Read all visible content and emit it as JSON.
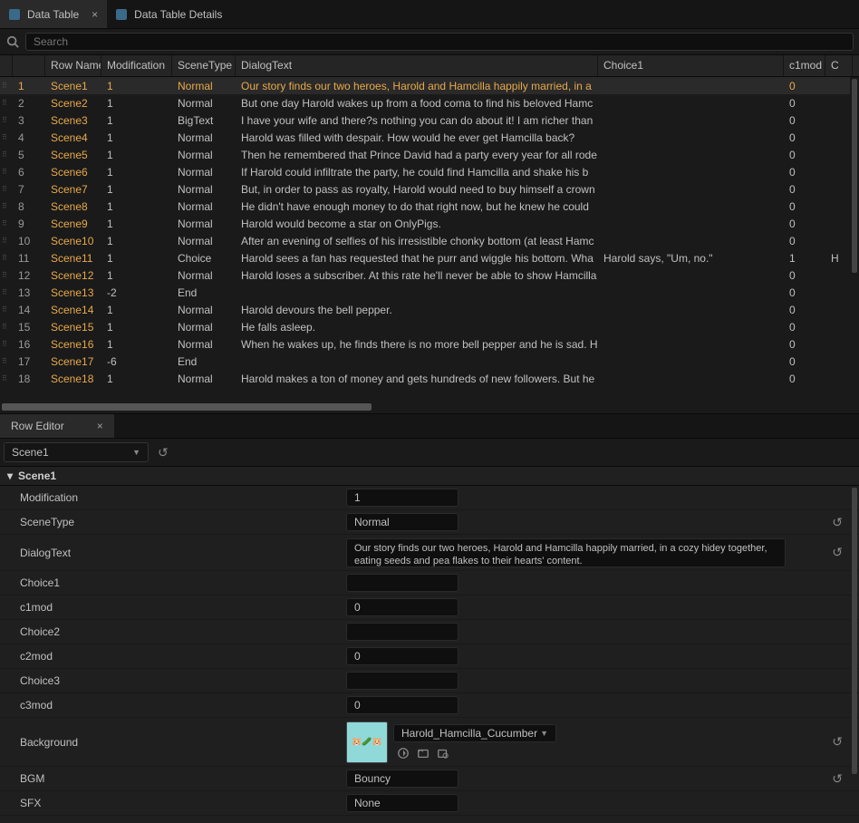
{
  "tabs": {
    "dataTable": "Data Table",
    "dataTableDetails": "Data Table Details"
  },
  "search": {
    "placeholder": "Search"
  },
  "columns": {
    "index": "",
    "rowName": "Row Name",
    "modification": "Modification",
    "sceneType": "SceneType",
    "dialogText": "DialogText",
    "choice1": "Choice1",
    "c1mod": "c1mod",
    "c": "C"
  },
  "rows": [
    {
      "idx": "1",
      "name": "Scene1",
      "mod": "1",
      "type": "Normal",
      "dialog": "Our story finds our two heroes, Harold and Hamcilla happily married, in a",
      "choice1": "",
      "c1mod": "0",
      "c": ""
    },
    {
      "idx": "2",
      "name": "Scene2",
      "mod": "1",
      "type": "Normal",
      "dialog": "But one day Harold wakes up from a food coma to find his beloved Hamc",
      "choice1": "",
      "c1mod": "0",
      "c": ""
    },
    {
      "idx": "3",
      "name": "Scene3",
      "mod": "1",
      "type": "BigText",
      "dialog": "I have your wife and there?s nothing you can do about it! I am richer than",
      "choice1": "",
      "c1mod": "0",
      "c": ""
    },
    {
      "idx": "4",
      "name": "Scene4",
      "mod": "1",
      "type": "Normal",
      "dialog": "Harold was filled with despair. How would he ever get Hamcilla back?",
      "choice1": "",
      "c1mod": "0",
      "c": ""
    },
    {
      "idx": "5",
      "name": "Scene5",
      "mod": "1",
      "type": "Normal",
      "dialog": "Then he remembered that Prince David had a party every year for all rode",
      "choice1": "",
      "c1mod": "0",
      "c": ""
    },
    {
      "idx": "6",
      "name": "Scene6",
      "mod": "1",
      "type": "Normal",
      "dialog": "If Harold could infiltrate the party, he could find Hamcilla and shake his b",
      "choice1": "",
      "c1mod": "0",
      "c": ""
    },
    {
      "idx": "7",
      "name": "Scene7",
      "mod": "1",
      "type": "Normal",
      "dialog": "But, in order to pass as royalty, Harold would need to buy himself a crown",
      "choice1": "",
      "c1mod": "0",
      "c": ""
    },
    {
      "idx": "8",
      "name": "Scene8",
      "mod": "1",
      "type": "Normal",
      "dialog": "He didn't have enough money to do that right now, but he knew he could",
      "choice1": "",
      "c1mod": "0",
      "c": ""
    },
    {
      "idx": "9",
      "name": "Scene9",
      "mod": "1",
      "type": "Normal",
      "dialog": "Harold would become a star on OnlyPigs.",
      "choice1": "",
      "c1mod": "0",
      "c": ""
    },
    {
      "idx": "10",
      "name": "Scene10",
      "mod": "1",
      "type": "Normal",
      "dialog": "After an evening of selfies of his irresistible chonky bottom (at least Hamc",
      "choice1": "",
      "c1mod": "0",
      "c": ""
    },
    {
      "idx": "11",
      "name": "Scene11",
      "mod": "1",
      "type": "Choice",
      "dialog": "Harold sees a fan has requested that he purr and wiggle his bottom. Wha",
      "choice1": "Harold says, \"Um, no.\"",
      "c1mod": "1",
      "c": "H"
    },
    {
      "idx": "12",
      "name": "Scene12",
      "mod": "1",
      "type": "Normal",
      "dialog": "Harold loses a subscriber. At this rate he'll never be able to show Hamcilla",
      "choice1": "",
      "c1mod": "0",
      "c": ""
    },
    {
      "idx": "13",
      "name": "Scene13",
      "mod": "-2",
      "type": "End",
      "dialog": "",
      "choice1": "",
      "c1mod": "0",
      "c": ""
    },
    {
      "idx": "14",
      "name": "Scene14",
      "mod": "1",
      "type": "Normal",
      "dialog": "Harold devours the bell pepper.",
      "choice1": "",
      "c1mod": "0",
      "c": ""
    },
    {
      "idx": "15",
      "name": "Scene15",
      "mod": "1",
      "type": "Normal",
      "dialog": "He falls asleep.",
      "choice1": "",
      "c1mod": "0",
      "c": ""
    },
    {
      "idx": "16",
      "name": "Scene16",
      "mod": "1",
      "type": "Normal",
      "dialog": "When he wakes up, he finds there is no more bell pepper and he is sad. Ho",
      "choice1": "",
      "c1mod": "0",
      "c": ""
    },
    {
      "idx": "17",
      "name": "Scene17",
      "mod": "-6",
      "type": "End",
      "dialog": "",
      "choice1": "",
      "c1mod": "0",
      "c": ""
    },
    {
      "idx": "18",
      "name": "Scene18",
      "mod": "1",
      "type": "Normal",
      "dialog": "Harold makes a ton of money and gets hundreds of new followers. But he",
      "choice1": "",
      "c1mod": "0",
      "c": ""
    }
  ],
  "rowEditor": {
    "tabLabel": "Row Editor",
    "selectedRow": "Scene1",
    "sectionName": "Scene1",
    "props": {
      "modification": {
        "label": "Modification",
        "value": "1"
      },
      "sceneType": {
        "label": "SceneType",
        "value": "Normal"
      },
      "dialogText": {
        "label": "DialogText",
        "value": "Our story finds our two heroes, Harold and Hamcilla happily married, in a cozy hidey together, eating seeds and pea flakes to their hearts' content."
      },
      "choice1": {
        "label": "Choice1",
        "value": ""
      },
      "c1mod": {
        "label": "c1mod",
        "value": "0"
      },
      "choice2": {
        "label": "Choice2",
        "value": ""
      },
      "c2mod": {
        "label": "c2mod",
        "value": "0"
      },
      "choice3": {
        "label": "Choice3",
        "value": ""
      },
      "c3mod": {
        "label": "c3mod",
        "value": "0"
      },
      "background": {
        "label": "Background",
        "value": "Harold_Hamcilla_Cucumber"
      },
      "bgm": {
        "label": "BGM",
        "value": "Bouncy"
      },
      "sfx": {
        "label": "SFX",
        "value": "None"
      }
    }
  },
  "colors": {
    "bg": "#1a1a1a",
    "tabActive": "#2a2a2a",
    "highlight": "#e8a94a",
    "text": "#c0c0c0",
    "inputBg": "#0f0f0f",
    "border": "#2a2a2a",
    "thumbBg": "#8fd9d9"
  }
}
